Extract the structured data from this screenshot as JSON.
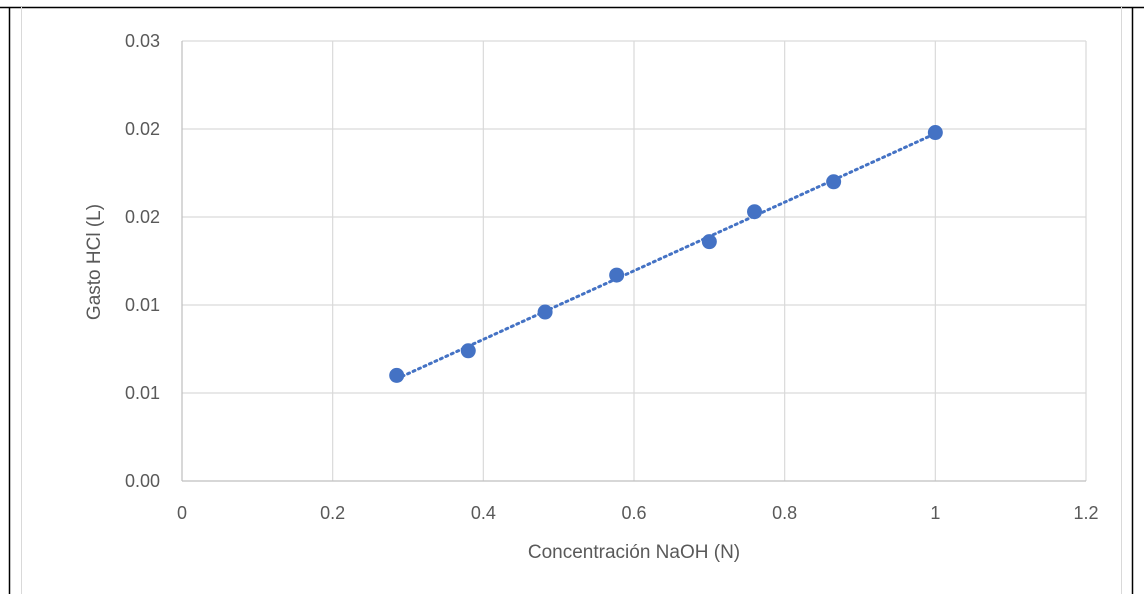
{
  "chart_data": {
    "type": "scatter",
    "title": "",
    "xlabel": "Concentración NaOH (N)",
    "ylabel": "Gasto HCl (L)",
    "xlim": [
      0,
      1.2
    ],
    "ylim": [
      0,
      0.025
    ],
    "x_ticks": [
      0,
      0.2,
      0.4,
      0.6,
      0.8,
      1,
      1.2
    ],
    "x_tick_labels": [
      "0",
      "0.2",
      "0.4",
      "0.6",
      "0.8",
      "1",
      "1.2"
    ],
    "y_ticks": [
      0,
      0.005,
      0.01,
      0.015,
      0.02,
      0.025
    ],
    "y_tick_labels": [
      "0.00",
      "0.01",
      "0.01",
      "0.02",
      "0.02",
      "0.03"
    ],
    "grid": true,
    "legend": "none",
    "series": [
      {
        "x": [
          0.285,
          0.38,
          0.482,
          0.577,
          0.7,
          0.76,
          0.865,
          1.0
        ],
        "y": [
          0.006,
          0.0074,
          0.0096,
          0.0117,
          0.0136,
          0.0153,
          0.017,
          0.0198
        ],
        "color": "#4472C4",
        "trendline": "linear"
      }
    ]
  }
}
